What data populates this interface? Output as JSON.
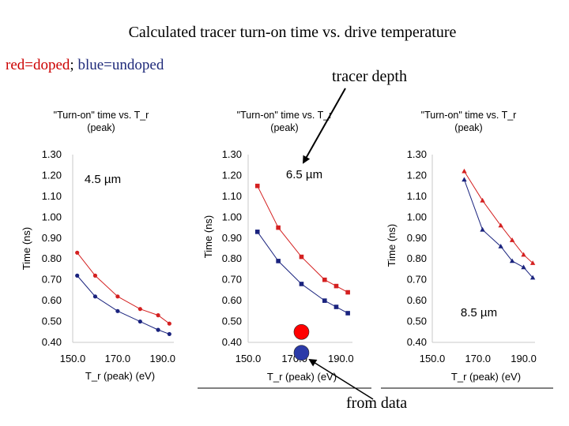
{
  "page": {
    "title": "Calculated tracer turn-on time vs. drive temperature",
    "legend_note": {
      "red_text": "red=doped",
      "sep": ";",
      "blue_text": "blue=undoped"
    },
    "annotations": {
      "tracer_depth": "tracer depth",
      "from_data": "from data"
    }
  },
  "colors": {
    "doped": "#d42020",
    "undoped": "#1a237e",
    "data_red": "#ff0000",
    "data_blue": "#2b3aa8"
  },
  "chart_data": [
    {
      "type": "line",
      "title": "\"Turn-on\" time vs. T_r (peak)",
      "annotation": "4.5 µm",
      "xlabel": "T_r (peak) (eV)",
      "ylabel": "Time (ns)",
      "xlim": [
        150,
        195
      ],
      "ylim": [
        0.4,
        1.3
      ],
      "xticks": [
        "150.0",
        "170.0",
        "190.0"
      ],
      "yticks": [
        "0.40",
        "0.50",
        "0.60",
        "0.70",
        "0.80",
        "0.90",
        "1.00",
        "1.10",
        "1.20",
        "1.30"
      ],
      "series": [
        {
          "color": "doped",
          "x": [
            152,
            160,
            170,
            180,
            188,
            193
          ],
          "y": [
            0.83,
            0.72,
            0.62,
            0.56,
            0.53,
            0.49
          ]
        },
        {
          "color": "undoped",
          "x": [
            152,
            160,
            170,
            180,
            188,
            193
          ],
          "y": [
            0.72,
            0.62,
            0.55,
            0.5,
            0.46,
            0.44
          ]
        }
      ]
    },
    {
      "type": "line",
      "title": "\"Turn-on\" time vs. T_r (peak)",
      "annotation": "6.5 µm",
      "xlabel": "T_r (peak) (eV)",
      "ylabel": "Time (ns)",
      "xlim": [
        150,
        195
      ],
      "ylim": [
        0.4,
        1.3
      ],
      "xticks": [
        "150.0",
        "170.0",
        "190.0"
      ],
      "yticks": [
        "0.40",
        "0.50",
        "0.60",
        "0.70",
        "0.80",
        "0.90",
        "1.00",
        "1.10",
        "1.20",
        "1.30"
      ],
      "series": [
        {
          "color": "doped",
          "x": [
            154,
            163,
            173,
            183,
            188,
            193
          ],
          "y": [
            1.15,
            0.95,
            0.81,
            0.7,
            0.67,
            0.64
          ]
        },
        {
          "color": "undoped",
          "x": [
            154,
            163,
            173,
            183,
            188,
            193
          ],
          "y": [
            0.93,
            0.79,
            0.68,
            0.6,
            0.57,
            0.54
          ]
        }
      ],
      "measured": [
        {
          "color": "data_red",
          "x": 173,
          "y": 0.45
        },
        {
          "color": "data_blue",
          "x": 173,
          "y": 0.35
        }
      ]
    },
    {
      "type": "line",
      "title": "\"Turn-on\" time vs. T_r (peak)",
      "annotation": "8.5 µm",
      "xlabel": "T_r (peak) (eV)",
      "ylabel": "Time (ns)",
      "xlim": [
        150,
        195
      ],
      "ylim": [
        0.4,
        1.3
      ],
      "xticks": [
        "150.0",
        "170.0",
        "190.0"
      ],
      "yticks": [
        "0.40",
        "0.50",
        "0.60",
        "0.70",
        "0.80",
        "0.90",
        "1.00",
        "1.10",
        "1.20",
        "1.30"
      ],
      "series": [
        {
          "color": "doped",
          "x": [
            164,
            172,
            180,
            185,
            190,
            194
          ],
          "y": [
            1.22,
            1.08,
            0.96,
            0.89,
            0.82,
            0.78
          ]
        },
        {
          "color": "undoped",
          "x": [
            164,
            172,
            180,
            185,
            190,
            194
          ],
          "y": [
            1.18,
            0.94,
            0.86,
            0.79,
            0.76,
            0.71
          ]
        }
      ]
    }
  ]
}
